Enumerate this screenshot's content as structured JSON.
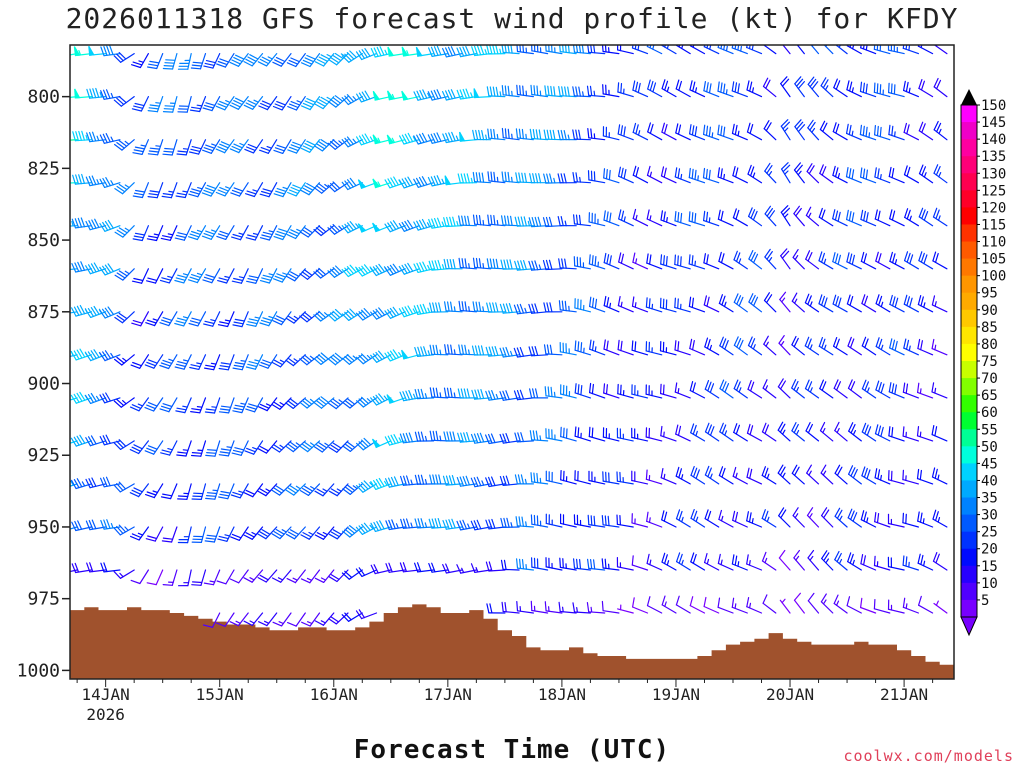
{
  "chart_data": {
    "type": "wind_barb_profile",
    "title": "2026011318 GFS forecast wind profile (kt) for KFDY",
    "xlabel": "Forecast Time (UTC)",
    "credit": "coolwx.com/models",
    "credit_color": "#e0405a",
    "ylim": [
      1003,
      782
    ],
    "y_ticks": [
      800,
      825,
      850,
      875,
      900,
      925,
      950,
      975,
      1000
    ],
    "x_hours_range": [
      -1.5,
      184.5
    ],
    "x_ticks": [
      {
        "hour": 6,
        "label": "14JAN",
        "sublabel": "2026"
      },
      {
        "hour": 30,
        "label": "15JAN",
        "sublabel": ""
      },
      {
        "hour": 54,
        "label": "16JAN",
        "sublabel": ""
      },
      {
        "hour": 78,
        "label": "17JAN",
        "sublabel": ""
      },
      {
        "hour": 102,
        "label": "18JAN",
        "sublabel": ""
      },
      {
        "hour": 126,
        "label": "19JAN",
        "sublabel": ""
      },
      {
        "hour": 150,
        "label": "20JAN",
        "sublabel": ""
      },
      {
        "hour": 174,
        "label": "21JAN",
        "sublabel": ""
      }
    ],
    "terrain_color": "#a0522d",
    "surface_pressure_hpa": [
      [
        0,
        979
      ],
      [
        3,
        978
      ],
      [
        6,
        979
      ],
      [
        9,
        979
      ],
      [
        12,
        978
      ],
      [
        15,
        979
      ],
      [
        18,
        979
      ],
      [
        21,
        980
      ],
      [
        24,
        981
      ],
      [
        27,
        982
      ],
      [
        30,
        983
      ],
      [
        33,
        984
      ],
      [
        36,
        984
      ],
      [
        39,
        985
      ],
      [
        42,
        986
      ],
      [
        45,
        986
      ],
      [
        48,
        985
      ],
      [
        51,
        985
      ],
      [
        54,
        986
      ],
      [
        57,
        986
      ],
      [
        60,
        985
      ],
      [
        63,
        983
      ],
      [
        66,
        980
      ],
      [
        69,
        978
      ],
      [
        72,
        977
      ],
      [
        75,
        978
      ],
      [
        78,
        980
      ],
      [
        81,
        980
      ],
      [
        84,
        979
      ],
      [
        87,
        982
      ],
      [
        90,
        986
      ],
      [
        93,
        988
      ],
      [
        96,
        992
      ],
      [
        99,
        993
      ],
      [
        102,
        993
      ],
      [
        105,
        992
      ],
      [
        108,
        994
      ],
      [
        111,
        995
      ],
      [
        114,
        995
      ],
      [
        117,
        996
      ],
      [
        120,
        996
      ],
      [
        123,
        996
      ],
      [
        126,
        996
      ],
      [
        129,
        996
      ],
      [
        132,
        995
      ],
      [
        135,
        993
      ],
      [
        138,
        991
      ],
      [
        141,
        990
      ],
      [
        144,
        989
      ],
      [
        147,
        987
      ],
      [
        150,
        989
      ],
      [
        153,
        990
      ],
      [
        156,
        991
      ],
      [
        159,
        991
      ],
      [
        162,
        991
      ],
      [
        165,
        990
      ],
      [
        168,
        991
      ],
      [
        171,
        991
      ],
      [
        174,
        993
      ],
      [
        177,
        995
      ],
      [
        180,
        997
      ],
      [
        183,
        998
      ]
    ],
    "barb_levels_hpa": [
      785,
      800,
      815,
      830,
      845,
      860,
      875,
      890,
      905,
      920,
      935,
      950,
      965,
      980
    ],
    "wind_keyframes": [
      {
        "hour": 0,
        "dir": 260,
        "spd": 45
      },
      {
        "hour": 9,
        "dir": 255,
        "spd": 35
      },
      {
        "hour": 15,
        "dir": 210,
        "spd": 25
      },
      {
        "hour": 24,
        "dir": 200,
        "spd": 30
      },
      {
        "hour": 42,
        "dir": 215,
        "spd": 30
      },
      {
        "hour": 57,
        "dir": 230,
        "spd": 35
      },
      {
        "hour": 66,
        "dir": 250,
        "spd": 45
      },
      {
        "hour": 78,
        "dir": 265,
        "spd": 40
      },
      {
        "hour": 96,
        "dir": 270,
        "spd": 35
      },
      {
        "hour": 108,
        "dir": 280,
        "spd": 30
      },
      {
        "hour": 120,
        "dir": 290,
        "spd": 20
      },
      {
        "hour": 132,
        "dir": 295,
        "spd": 25
      },
      {
        "hour": 144,
        "dir": 300,
        "spd": 25
      },
      {
        "hour": 150,
        "dir": 320,
        "spd": 20
      },
      {
        "hour": 165,
        "dir": 300,
        "spd": 25
      },
      {
        "hour": 174,
        "dir": 290,
        "spd": 25
      },
      {
        "hour": 183,
        "dir": 300,
        "spd": 20
      }
    ],
    "colorbar": {
      "ticks": [
        150,
        145,
        140,
        135,
        130,
        125,
        120,
        115,
        110,
        105,
        100,
        95,
        90,
        85,
        80,
        75,
        70,
        65,
        60,
        55,
        50,
        45,
        40,
        35,
        30,
        25,
        20,
        15,
        10,
        5
      ],
      "colors": [
        "#ff00ff",
        "#f000c8",
        "#ff00a0",
        "#ff0078",
        "#ff0050",
        "#ff0028",
        "#ff0000",
        "#ff3200",
        "#ff5a00",
        "#ff7800",
        "#ff9600",
        "#ffaa00",
        "#ffc800",
        "#ffe600",
        "#ffff00",
        "#c8ff00",
        "#82ff00",
        "#32ff00",
        "#00ff32",
        "#00ff96",
        "#00ffdc",
        "#00d2ff",
        "#00aaff",
        "#0082ff",
        "#005aff",
        "#0032ff",
        "#000aff",
        "#2800ff",
        "#5000ff",
        "#7800ff"
      ]
    }
  }
}
